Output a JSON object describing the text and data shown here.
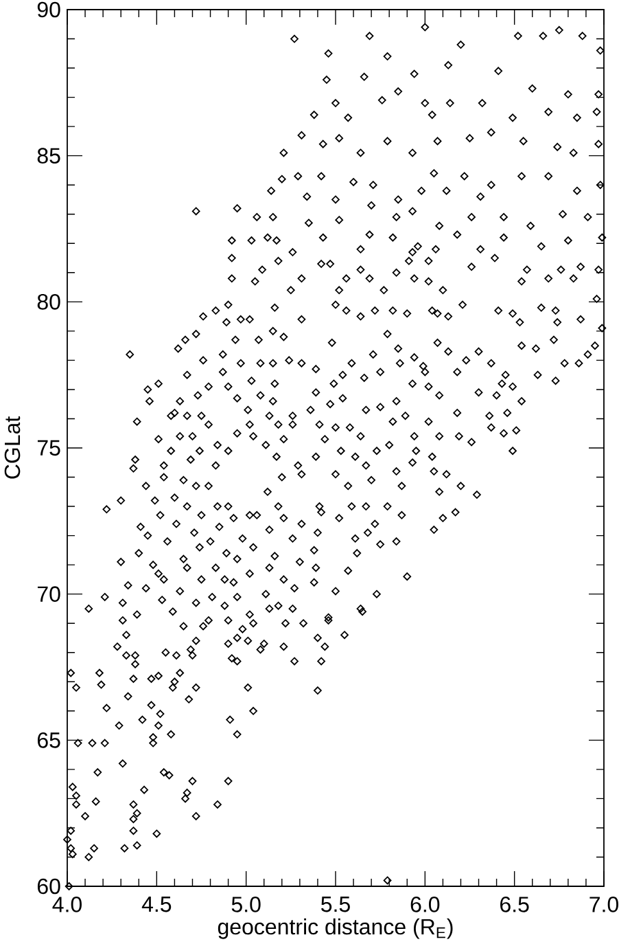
{
  "chart_data": {
    "type": "scatter",
    "xlabel": "geocentric distance (R$_{E}$)",
    "ylabel": "CGLat",
    "color": "#000000",
    "marker": "diamond",
    "xlim": [
      4,
      7
    ],
    "ylim": [
      60,
      90
    ],
    "xticks": [
      {
        "value": 4,
        "label": "4.0"
      },
      {
        "value": 4.1,
        "label": null
      },
      {
        "value": 4.2,
        "label": null
      },
      {
        "value": 4.3,
        "label": null
      },
      {
        "value": 4.4,
        "label": null
      },
      {
        "value": 4.5,
        "label": "4.5"
      },
      {
        "value": 4.6,
        "label": null
      },
      {
        "value": 4.7,
        "label": null
      },
      {
        "value": 4.8,
        "label": null
      },
      {
        "value": 4.9,
        "label": null
      },
      {
        "value": 5,
        "label": "5.0"
      },
      {
        "value": 5.1,
        "label": null
      },
      {
        "value": 5.2,
        "label": null
      },
      {
        "value": 5.3,
        "label": null
      },
      {
        "value": 5.4,
        "label": null
      },
      {
        "value": 5.5,
        "label": "5.5"
      },
      {
        "value": 5.6,
        "label": null
      },
      {
        "value": 5.7,
        "label": null
      },
      {
        "value": 5.8,
        "label": null
      },
      {
        "value": 5.9,
        "label": null
      },
      {
        "value": 6,
        "label": "6.0"
      },
      {
        "value": 6.1,
        "label": null
      },
      {
        "value": 6.2,
        "label": null
      },
      {
        "value": 6.3,
        "label": null
      },
      {
        "value": 6.4,
        "label": null
      },
      {
        "value": 6.5,
        "label": "6.5"
      },
      {
        "value": 6.6,
        "label": null
      },
      {
        "value": 6.7,
        "label": null
      },
      {
        "value": 6.8,
        "label": null
      },
      {
        "value": 6.9,
        "label": null
      },
      {
        "value": 7,
        "label": "7.0"
      }
    ],
    "yticks": [
      60,
      {
        "value": 61,
        "label": null
      },
      {
        "value": 62,
        "label": null
      },
      {
        "value": 63,
        "label": null
      },
      {
        "value": 64,
        "label": null
      },
      65,
      {
        "value": 66,
        "label": null
      },
      {
        "value": 67,
        "label": null
      },
      {
        "value": 68,
        "label": null
      },
      {
        "value": 69,
        "label": null
      },
      70,
      {
        "value": 71,
        "label": null
      },
      {
        "value": 72,
        "label": null
      },
      {
        "value": 73,
        "label": null
      },
      {
        "value": 74,
        "label": null
      },
      75,
      {
        "value": 76,
        "label": null
      },
      {
        "value": 77,
        "label": null
      },
      {
        "value": 78,
        "label": null
      },
      {
        "value": 79,
        "label": null
      },
      80,
      {
        "value": 81,
        "label": null
      },
      {
        "value": 82,
        "label": null
      },
      {
        "value": 83,
        "label": null
      },
      {
        "value": 84,
        "label": null
      },
      85,
      {
        "value": 86,
        "label": null
      },
      {
        "value": 87,
        "label": null
      },
      {
        "value": 88,
        "label": null
      },
      {
        "value": 89,
        "label": null
      },
      90
    ],
    "x": [
      4.72,
      4.95,
      5.27,
      5.69,
      6.0,
      6.2,
      6.52,
      6.66,
      6.75,
      6.88,
      6.98,
      5.46,
      5.79,
      5.45,
      5.66,
      5.94,
      6.13,
      6.41,
      6.6,
      6.8,
      6.97,
      5.38,
      5.5,
      5.57,
      5.76,
      5.85,
      6.0,
      6.04,
      6.14,
      6.32,
      6.49,
      6.69,
      6.85,
      6.96,
      5.31,
      5.21,
      5.43,
      5.52,
      5.64,
      5.79,
      5.93,
      6.07,
      6.25,
      6.37,
      6.55,
      6.74,
      6.83,
      6.97,
      5.14,
      5.2,
      5.29,
      5.42,
      5.34,
      5.5,
      5.6,
      5.71,
      5.85,
      5.98,
      6.05,
      6.12,
      6.22,
      6.31,
      6.37,
      6.54,
      6.69,
      6.85,
      6.98,
      5.06,
      5.15,
      5.35,
      5.52,
      5.7,
      5.84,
      5.93,
      6.08,
      6.18,
      6.26,
      6.44,
      6.59,
      6.77,
      6.91,
      4.92,
      5.03,
      5.12,
      5.17,
      5.43,
      5.64,
      5.69,
      5.82,
      5.96,
      6.06,
      6.31,
      6.44,
      6.65,
      6.8,
      6.99,
      4.92,
      5.09,
      5.18,
      5.26,
      5.42,
      5.47,
      5.64,
      5.93,
      5.91,
      6.02,
      6.26,
      6.39,
      6.57,
      6.76,
      6.87,
      6.97,
      4.92,
      5.05,
      5.25,
      5.31,
      5.52,
      5.56,
      5.69,
      5.77,
      5.84,
      5.94,
      6.02,
      6.1,
      6.54,
      6.69,
      6.83,
      6.96,
      4.76,
      4.83,
      4.9,
      5.02,
      5.16,
      5.31,
      5.5,
      5.64,
      5.72,
      5.82,
      5.9,
      6.07,
      6.21,
      6.41,
      6.49,
      6.73,
      6.87,
      4.35,
      4.46,
      4.51,
      4.45,
      4.39,
      4.37,
      4.38,
      4.51,
      4.3,
      4.22,
      4.12,
      4.21,
      4.3,
      4.31,
      4.34,
      4.4,
      4.41,
      4.45,
      4.48,
      4.49,
      4.51,
      4.54,
      4.59,
      4.62,
      4.66,
      4.72,
      4.89,
      4.97,
      5.15,
      5.21,
      5.07,
      4.94,
      4.87,
      4.76,
      4.67,
      4.63,
      4.58,
      4.73,
      4.79,
      4.87,
      4.97,
      5.03,
      5.08,
      5.15,
      5.24,
      5.31,
      5.39,
      5.48,
      5.56,
      6.04,
      6.13,
      6.53,
      6.65,
      6.74,
      6.99,
      5.79,
      5.71,
      5.75,
      5.85,
      5.94,
      5.99,
      6.07,
      6.13,
      6.18,
      6.23,
      6.3,
      6.37,
      6.45,
      6.54,
      6.62,
      6.63,
      6.72,
      6.73,
      6.78,
      6.86,
      6.91,
      6.95,
      6.3,
      6.36,
      6.4,
      6.43,
      6.49,
      6.54,
      6.37,
      6.44,
      6.49,
      6.51,
      6.46,
      6.26,
      6.19,
      6.18,
      6.29,
      6.2,
      6.17,
      6.1,
      6.05,
      6.08,
      6.05,
      6.12,
      6.04,
      6.08,
      6.02,
      6.08,
      6.02,
      6.0,
      5.93,
      5.86,
      5.84,
      5.89,
      5.82,
      5.75,
      5.8,
      5.94,
      5.95,
      5.93,
      5.84,
      5.87,
      5.79,
      5.87,
      5.84,
      5.9,
      5.75,
      5.68,
      5.72,
      5.67,
      5.7,
      5.67,
      5.73,
      5.64,
      5.67,
      5.66,
      5.59,
      5.54,
      5.49,
      5.54,
      5.47,
      5.58,
      5.53,
      5.61,
      5.5,
      5.57,
      5.59,
      5.52,
      5.61,
      5.62,
      5.57,
      5.5,
      5.64,
      5.73,
      5.41,
      5.42,
      5.4,
      5.38,
      5.39,
      5.46,
      5.38,
      5.31,
      5.26,
      5.3,
      5.27,
      5.31,
      5.29,
      5.39,
      5.44,
      5.5,
      5.41,
      5.36,
      5.39,
      5.26,
      5.26,
      5.21,
      5.17,
      5.11,
      5.2,
      5.12,
      5.18,
      5.21,
      5.13,
      5.16,
      5.13,
      5.21,
      5.11,
      5.18,
      5.06,
      5.02,
      4.98,
      5.04,
      4.95,
      5.02,
      4.93,
      4.95,
      5.02,
      4.88,
      4.9,
      4.81,
      4.83,
      4.88,
      4.89,
      4.8,
      4.85,
      4.9,
      4.93,
      4.84,
      4.79,
      4.83,
      4.84,
      4.9,
      4.95,
      5.02,
      5.04,
      5.01,
      4.95,
      4.9,
      5.08,
      5.15,
      5.16,
      5.13,
      5.18,
      4.79,
      4.75,
      4.7,
      4.74,
      4.69,
      4.65,
      4.72,
      4.67,
      4.75,
      4.71,
      4.74,
      4.65,
      4.67,
      4.63,
      4.75,
      4.72,
      4.6,
      4.61,
      4.56,
      4.54,
      4.58,
      4.63,
      4.6,
      4.67,
      4.54,
      4.44,
      4.52,
      4.44,
      4.53,
      4.39,
      4.31,
      4.33,
      4.28,
      4.33,
      4.38,
      4.38,
      4.37,
      4.34,
      4.22,
      4.29,
      4.18,
      4.19,
      4.02,
      4.05,
      4.06,
      4.14,
      4.21,
      4.17,
      4.31,
      4.03,
      4.05,
      4.05,
      4.16,
      4.1,
      4.02,
      4.0,
      4.02,
      4.03,
      4.12,
      4.15,
      4.01,
      4.32,
      4.39,
      4.37,
      4.37,
      4.39,
      4.37,
      4.43,
      4.5,
      4.7,
      4.66,
      4.67,
      4.72,
      4.84,
      4.9,
      4.54,
      4.57,
      4.58,
      4.48,
      4.48,
      4.51,
      4.42,
      4.52,
      4.47,
      4.51,
      4.47,
      4.59,
      4.6,
      4.63,
      4.68,
      4.72,
      4.55,
      4.61,
      4.7,
      4.69,
      4.72,
      4.65,
      4.76,
      4.79,
      4.9,
      4.92,
      4.95,
      4.95,
      4.98,
      5.01,
      5.04,
      5.08,
      5.1,
      5.01,
      5.04,
      4.91,
      4.95,
      5.21,
      5.27,
      5.22,
      5.32,
      5.4,
      5.44,
      5.42,
      5.46,
      5.55,
      5.4,
      5.65,
      5.79,
      5.13,
      5.26
    ],
    "values": [
      83.1,
      83.2,
      89.0,
      89.1,
      89.4,
      88.8,
      89.1,
      89.1,
      89.3,
      89.1,
      88.6,
      88.5,
      88.4,
      87.6,
      87.7,
      87.8,
      88.1,
      87.9,
      87.3,
      87.1,
      87.1,
      86.4,
      86.8,
      86.3,
      86.9,
      87.2,
      86.8,
      86.4,
      86.8,
      86.8,
      86.3,
      86.5,
      86.3,
      86.5,
      85.7,
      85.1,
      85.4,
      85.6,
      85.1,
      85.5,
      85.1,
      85.5,
      85.6,
      85.8,
      85.5,
      85.3,
      85.1,
      85.4,
      83.8,
      84.2,
      84.3,
      84.3,
      83.6,
      83.5,
      84.1,
      84.0,
      83.5,
      83.8,
      84.4,
      83.8,
      84.3,
      83.6,
      84.0,
      84.3,
      84.3,
      83.8,
      84.0,
      82.9,
      82.9,
      82.7,
      82.8,
      83.3,
      82.9,
      83.1,
      82.6,
      82.3,
      82.9,
      82.9,
      82.6,
      83.0,
      82.9,
      82.1,
      82.1,
      82.2,
      82.1,
      82.2,
      81.8,
      82.3,
      82.2,
      81.9,
      81.8,
      81.8,
      82.2,
      81.9,
      82.1,
      82.2,
      81.5,
      81.1,
      81.4,
      81.7,
      81.3,
      81.3,
      81.1,
      81.7,
      81.4,
      81.4,
      81.2,
      81.5,
      81.1,
      81.1,
      81.2,
      81.1,
      80.8,
      80.7,
      80.4,
      80.8,
      80.4,
      80.8,
      80.8,
      80.4,
      81.0,
      80.8,
      80.7,
      80.4,
      80.7,
      80.8,
      80.8,
      80.1,
      79.5,
      79.7,
      79.9,
      79.4,
      79.8,
      79.4,
      79.9,
      79.5,
      79.7,
      79.7,
      79.6,
      79.6,
      79.9,
      79.7,
      79.6,
      79.7,
      79.4,
      78.2,
      76.6,
      77.2,
      77.0,
      75.9,
      74.3,
      74.6,
      75.3,
      73.2,
      72.9,
      69.5,
      69.9,
      71.1,
      69.7,
      70.3,
      71.4,
      72.3,
      72.0,
      71.0,
      73.2,
      70.7,
      70.5,
      69.4,
      78.4,
      78.7,
      78.9,
      79.3,
      79.4,
      79.0,
      78.8,
      78.7,
      78.7,
      78.2,
      78.0,
      77.5,
      76.6,
      76.1,
      76.8,
      77.1,
      77.6,
      77.9,
      77.3,
      77.9,
      77.9,
      78.0,
      77.9,
      77.7,
      78.6,
      79.7,
      79.7,
      79.5,
      79.3,
      79.8,
      79.3,
      79.1,
      78.9,
      78.2,
      77.6,
      78.4,
      78.1,
      77.8,
      78.6,
      78.3,
      77.6,
      78.0,
      78.3,
      77.9,
      77.5,
      78.5,
      78.4,
      77.5,
      78.7,
      77.3,
      77.9,
      77.9,
      78.2,
      78.5,
      76.9,
      76.1,
      76.8,
      77.2,
      77.1,
      76.6,
      75.7,
      75.5,
      74.9,
      75.6,
      76.2,
      75.2,
      75.4,
      76.2,
      73.4,
      73.7,
      72.8,
      72.6,
      72.2,
      73.5,
      74.2,
      74.1,
      74.7,
      75.4,
      75.9,
      76.8,
      77.1,
      77.6,
      77.2,
      77.9,
      76.6,
      76.1,
      75.9,
      76.4,
      75.1,
      75.4,
      74.9,
      74.5,
      74.2,
      73.7,
      73.0,
      72.7,
      71.8,
      70.6,
      71.7,
      72.1,
      72.4,
      73.0,
      73.9,
      74.4,
      74.9,
      75.4,
      76.3,
      77.4,
      77.9,
      77.5,
      77.2,
      76.7,
      76.5,
      75.7,
      74.9,
      74.7,
      74.1,
      73.7,
      73.0,
      72.6,
      71.9,
      71.4,
      70.8,
      70.1,
      69.5,
      70.0,
      73.0,
      72.8,
      72.1,
      71.5,
      70.9,
      69.2,
      70.4,
      72.4,
      71.9,
      71.1,
      70.2,
      74.1,
      74.4,
      74.7,
      75.3,
      75.7,
      75.8,
      76.3,
      76.9,
      76.1,
      75.8,
      75.3,
      74.7,
      75.1,
      74.0,
      73.5,
      73.0,
      72.6,
      72.2,
      71.3,
      70.9,
      70.5,
      70.0,
      69.6,
      72.7,
      72.7,
      71.9,
      71.6,
      71.2,
      70.7,
      70.4,
      69.9,
      69.3,
      69.6,
      69.1,
      69.9,
      70.9,
      70.5,
      71.4,
      71.8,
      72.3,
      73.0,
      72.6,
      73.0,
      73.7,
      74.4,
      75.1,
      74.9,
      75.5,
      75.8,
      75.4,
      76.3,
      76.7,
      77.1,
      76.8,
      76.6,
      77.2,
      76.1,
      75.8,
      75.8,
      76.1,
      75.4,
      74.9,
      74.6,
      73.9,
      73.7,
      73.0,
      72.7,
      72.1,
      71.6,
      71.2,
      70.9,
      70.1,
      70.5,
      69.7,
      73.3,
      72.4,
      71.8,
      74.0,
      74.9,
      75.4,
      76.2,
      76.1,
      74.4,
      73.7,
      72.7,
      70.2,
      69.8,
      69.3,
      69.1,
      68.6,
      68.2,
      67.9,
      67.9,
      67.6,
      67.1,
      66.5,
      66.1,
      65.5,
      67.3,
      66.9,
      67.3,
      66.8,
      64.9,
      64.9,
      64.9,
      63.9,
      64.2,
      63.4,
      63.1,
      62.8,
      62.9,
      62.4,
      61.9,
      61.6,
      61.3,
      61.1,
      61.0,
      61.3,
      60.0,
      61.3,
      61.4,
      61.9,
      62.3,
      62.5,
      62.8,
      63.3,
      61.8,
      63.6,
      63.0,
      63.2,
      62.4,
      62.8,
      63.6,
      63.9,
      63.8,
      65.2,
      64.9,
      65.1,
      65.5,
      65.7,
      65.9,
      66.2,
      67.2,
      67.1,
      66.8,
      67.0,
      67.3,
      66.4,
      66.8,
      68.0,
      67.9,
      67.9,
      68.1,
      68.4,
      68.9,
      68.9,
      69.1,
      68.3,
      67.8,
      67.7,
      68.5,
      68.8,
      68.4,
      69.0,
      68.1,
      68.3,
      66.8,
      66.0,
      65.7,
      65.2,
      68.2,
      67.7,
      69.0,
      69.0,
      68.5,
      68.2,
      67.7,
      69.1,
      68.6,
      66.7,
      69.4,
      60.2,
      69.5,
      69.5
    ]
  }
}
